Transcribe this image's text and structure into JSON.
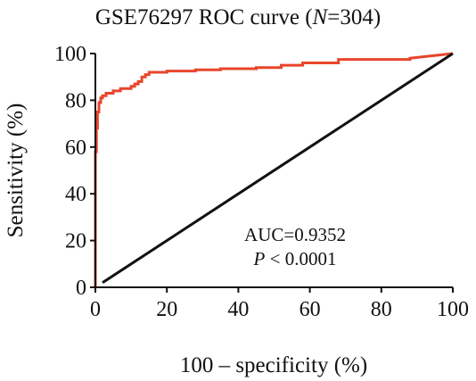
{
  "chart_data": {
    "type": "line",
    "title_prefix": "GSE76297 ROC curve (",
    "title_n_symbol": "N",
    "title_suffix": "=304)",
    "xlabel": "100 – specificity (%)",
    "ylabel": "Sensitivity (%)",
    "xlim": [
      0,
      100
    ],
    "ylim": [
      0,
      100
    ],
    "xticks": [
      "0",
      "20",
      "40",
      "60",
      "80",
      "100"
    ],
    "yticks": [
      "0",
      "20",
      "40",
      "60",
      "80",
      "100"
    ],
    "grid": false,
    "annotations": {
      "auc_text": "AUC=0.9352",
      "p_symbol": "P",
      "p_rest": " < 0.0001"
    },
    "series": [
      {
        "role": "roc",
        "color": "#e8452b",
        "x": [
          0,
          0,
          0.3,
          0.3,
          0.6,
          0.6,
          1,
          1,
          1.5,
          1.5,
          2,
          2,
          3,
          3,
          5,
          5,
          7,
          7,
          10,
          10,
          11,
          11,
          12,
          12,
          13,
          13,
          14,
          14,
          15,
          15,
          20,
          20,
          28,
          28,
          35,
          35,
          45,
          45,
          52,
          52,
          58,
          58,
          68,
          68,
          88,
          88,
          100
        ],
        "y": [
          0,
          58,
          58,
          68,
          68,
          75,
          75,
          79,
          79,
          81,
          81,
          82,
          82,
          83,
          83,
          84,
          84,
          85,
          85,
          86,
          86,
          87,
          87,
          88,
          88,
          90,
          90,
          91,
          91,
          92,
          92,
          92.5,
          92.5,
          93,
          93,
          93.5,
          93.5,
          94,
          94,
          95,
          95,
          96,
          96,
          97.5,
          97.5,
          98,
          100
        ]
      },
      {
        "role": "reference",
        "color": "#111111",
        "x": [
          2,
          100
        ],
        "y": [
          2,
          100
        ]
      }
    ]
  }
}
